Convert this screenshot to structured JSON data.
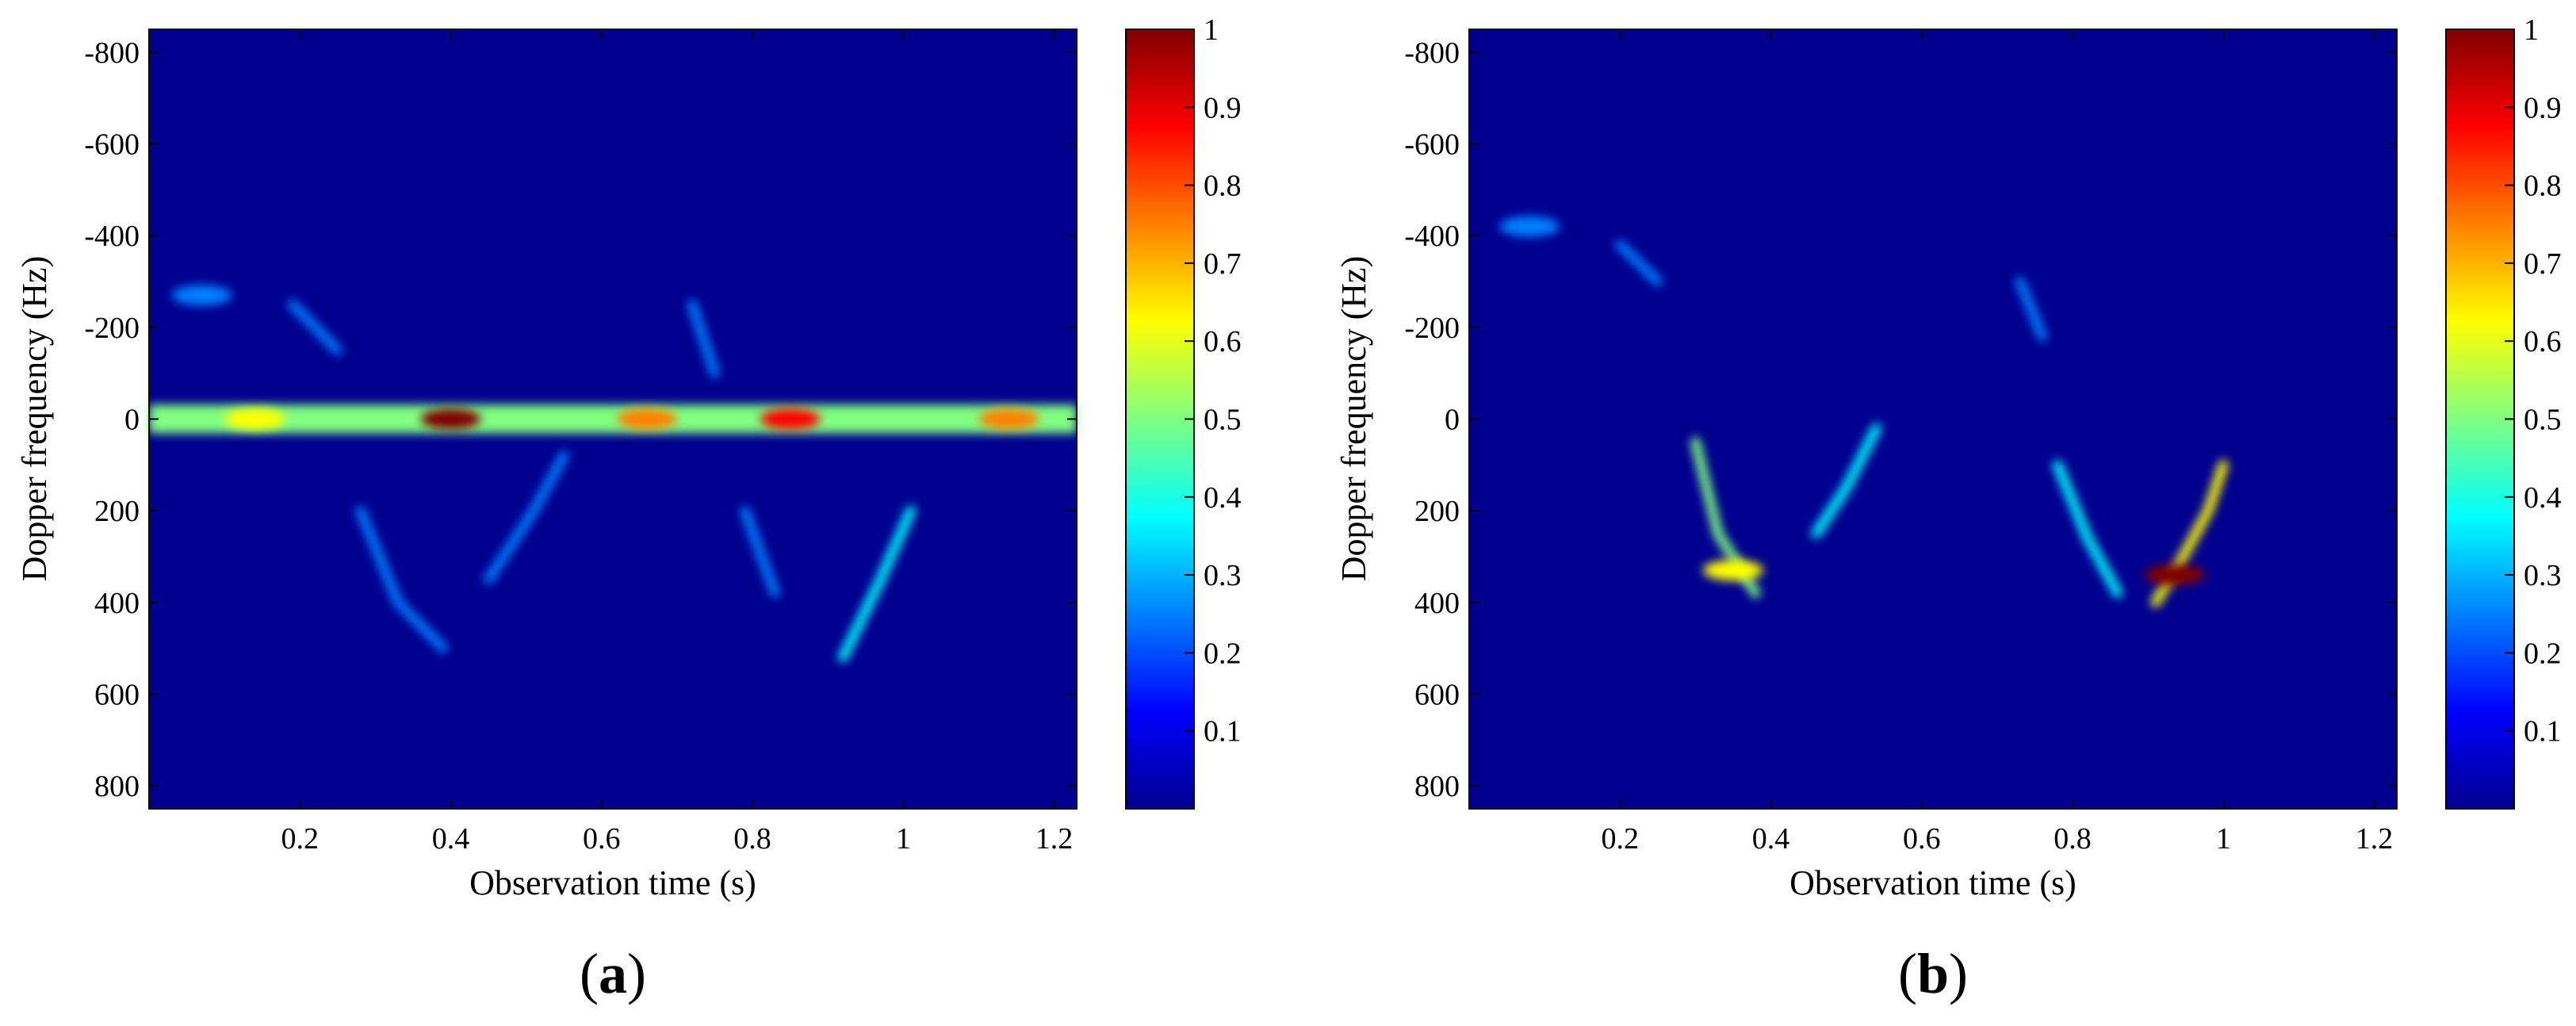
{
  "colormap": [
    "#00008f",
    "#0000ff",
    "#0080ff",
    "#00ffff",
    "#80ff80",
    "#ffff00",
    "#ff8000",
    "#ff0000",
    "#800000"
  ],
  "chart_data": [
    {
      "type": "heatmap",
      "panel_label": "a",
      "xlabel": "Observation time (s)",
      "ylabel": "Dopper frequency (Hz)",
      "xlim": [
        0,
        1.23
      ],
      "ylim": [
        -850,
        850
      ],
      "y_reversed": true,
      "xticks": [
        0.2,
        0.4,
        0.6,
        0.8,
        1,
        1.2
      ],
      "xtick_labels": [
        "0.2",
        "0.4",
        "0.6",
        "0.8",
        "1",
        "1.2"
      ],
      "yticks": [
        -800,
        -600,
        -400,
        -200,
        0,
        200,
        400,
        600,
        800
      ],
      "ytick_labels": [
        "-800",
        "-600",
        "-400",
        "-200",
        "0",
        "200",
        "400",
        "600",
        "800"
      ],
      "colorbar": {
        "range": [
          0,
          1
        ],
        "ticks": [
          0.1,
          0.2,
          0.3,
          0.4,
          0.5,
          0.6,
          0.7,
          0.8,
          0.9,
          1
        ],
        "tick_labels": [
          "0.1",
          "0.2",
          "0.3",
          "0.4",
          "0.5",
          "0.6",
          "0.7",
          "0.8",
          "0.9",
          "1"
        ]
      },
      "features": [
        {
          "kind": "band",
          "y": 0,
          "x_range": [
            0,
            1.23
          ],
          "intensity": 0.5
        },
        {
          "kind": "blob",
          "x": 0.4,
          "y": 0,
          "intensity": 0.95
        },
        {
          "kind": "blob",
          "x": 0.85,
          "y": 0,
          "intensity": 0.9
        },
        {
          "kind": "blob",
          "x": 0.66,
          "y": 0,
          "intensity": 0.7
        },
        {
          "kind": "blob",
          "x": 1.14,
          "y": 0,
          "intensity": 0.75
        },
        {
          "kind": "blob",
          "x": 0.14,
          "y": 0,
          "intensity": 0.6
        },
        {
          "kind": "blob",
          "x": 0.07,
          "y": -270,
          "intensity": 0.25
        },
        {
          "kind": "curve",
          "points": [
            [
              0.19,
              -250
            ],
            [
              0.25,
              -150
            ]
          ],
          "intensity": 0.25
        },
        {
          "kind": "curve",
          "points": [
            [
              0.28,
              200
            ],
            [
              0.33,
              400
            ],
            [
              0.39,
              500
            ]
          ],
          "intensity": 0.3
        },
        {
          "kind": "curve",
          "points": [
            [
              0.45,
              350
            ],
            [
              0.51,
              200
            ],
            [
              0.55,
              80
            ]
          ],
          "intensity": 0.3
        },
        {
          "kind": "curve",
          "points": [
            [
              0.72,
              -250
            ],
            [
              0.75,
              -100
            ]
          ],
          "intensity": 0.25
        },
        {
          "kind": "curve",
          "points": [
            [
              0.79,
              200
            ],
            [
              0.83,
              380
            ]
          ],
          "intensity": 0.25
        },
        {
          "kind": "curve",
          "points": [
            [
              0.92,
              520
            ],
            [
              0.97,
              350
            ],
            [
              1.01,
              200
            ]
          ],
          "intensity": 0.35
        }
      ]
    },
    {
      "type": "heatmap",
      "panel_label": "b",
      "xlabel": "Observation time (s)",
      "ylabel": "Dopper frequency (Hz)",
      "xlim": [
        0,
        1.23
      ],
      "ylim": [
        -850,
        850
      ],
      "y_reversed": true,
      "xticks": [
        0.2,
        0.4,
        0.6,
        0.8,
        1,
        1.2
      ],
      "xtick_labels": [
        "0.2",
        "0.4",
        "0.6",
        "0.8",
        "1",
        "1.2"
      ],
      "yticks": [
        -800,
        -600,
        -400,
        -200,
        0,
        200,
        400,
        600,
        800
      ],
      "ytick_labels": [
        "-800",
        "-600",
        "-400",
        "-200",
        "0",
        "200",
        "400",
        "600",
        "800"
      ],
      "colorbar": {
        "range": [
          0,
          1
        ],
        "ticks": [
          0.1,
          0.2,
          0.3,
          0.4,
          0.5,
          0.6,
          0.7,
          0.8,
          0.9,
          1
        ],
        "tick_labels": [
          "0.1",
          "0.2",
          "0.3",
          "0.4",
          "0.5",
          "0.6",
          "0.7",
          "0.8",
          "0.9",
          "1"
        ]
      },
      "features": [
        {
          "kind": "blob",
          "x": 0.08,
          "y": -420,
          "intensity": 0.25
        },
        {
          "kind": "curve",
          "points": [
            [
              0.2,
              -380
            ],
            [
              0.25,
              -300
            ]
          ],
          "intensity": 0.25
        },
        {
          "kind": "curve",
          "points": [
            [
              0.3,
              50
            ],
            [
              0.33,
              250
            ],
            [
              0.38,
              380
            ]
          ],
          "intensity": 0.45
        },
        {
          "kind": "blob",
          "x": 0.35,
          "y": 330,
          "intensity": 0.6
        },
        {
          "kind": "curve",
          "points": [
            [
              0.46,
              250
            ],
            [
              0.5,
              150
            ],
            [
              0.54,
              20
            ]
          ],
          "intensity": 0.35
        },
        {
          "kind": "curve",
          "points": [
            [
              0.73,
              -300
            ],
            [
              0.76,
              -180
            ]
          ],
          "intensity": 0.2
        },
        {
          "kind": "curve",
          "points": [
            [
              0.78,
              100
            ],
            [
              0.82,
              260
            ],
            [
              0.86,
              380
            ]
          ],
          "intensity": 0.4
        },
        {
          "kind": "curve",
          "points": [
            [
              0.91,
              400
            ],
            [
              0.94,
              320
            ],
            [
              0.98,
              200
            ],
            [
              1.0,
              100
            ]
          ],
          "intensity": 0.6
        },
        {
          "kind": "blob",
          "x": 0.935,
          "y": 340,
          "intensity": 0.95
        }
      ]
    }
  ]
}
